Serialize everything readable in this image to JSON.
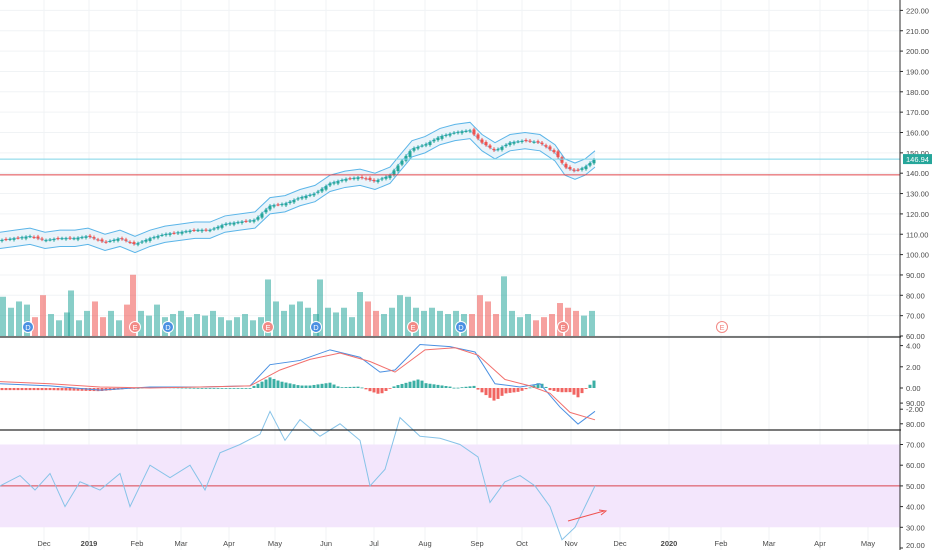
{
  "colors": {
    "up": "#26a69a",
    "down": "#ef5350",
    "band": "#5bb5e8",
    "band_fill": "#dcecf8",
    "support_line": "#e0464b",
    "price_line": "#7ed4e8",
    "price_tag": "#26a69a",
    "macd_line": "#4a90e2",
    "signal_line": "#f2706d",
    "rsi_line": "#87c3e8",
    "rsi_band": "#f3e6fc",
    "rsi_mid": "#d9434b",
    "grid": "#f0f3f5",
    "axis_text": "#4a4a4a"
  },
  "price_axis": {
    "ticks": [
      "60.00",
      "70.00",
      "80.00",
      "90.00",
      "100.00",
      "110.00",
      "120.00",
      "130.00",
      "140.00",
      "150.00",
      "160.00",
      "170.00",
      "180.00",
      "190.00",
      "200.00",
      "210.00",
      "220.00"
    ],
    "tick_values": [
      60,
      70,
      80,
      90,
      100,
      110,
      120,
      130,
      140,
      150,
      160,
      170,
      180,
      190,
      200,
      210,
      220
    ],
    "current_label": "146.94",
    "current_value": 146.94,
    "support_level": 139.2
  },
  "macd_axis": {
    "ticks": [
      "4.00",
      "2.00",
      "0.00",
      "-2.00"
    ],
    "tick_values": [
      4,
      2,
      0,
      -2
    ]
  },
  "rsi_axis": {
    "ticks": [
      "90.00",
      "80.00",
      "70.00",
      "60.00",
      "50.00",
      "40.00",
      "30.00",
      "20.00"
    ],
    "tick_values": [
      90,
      80,
      70,
      60,
      50,
      40,
      30,
      20
    ],
    "band": [
      30,
      70
    ],
    "midline": 50
  },
  "time_axis": [
    "Dec",
    "2019",
    "Feb",
    "Mar",
    "Apr",
    "May",
    "Jun",
    "Jul",
    "Aug",
    "Sep",
    "Oct",
    "Nov",
    "Dec",
    "2020",
    "Feb",
    "Mar",
    "Apr",
    "May"
  ],
  "chart_data": {
    "type": "candlestick",
    "series": [
      {
        "name": "price",
        "points": [
          {
            "t": 0,
            "v": 107
          },
          {
            "t": 15,
            "v": 108
          },
          {
            "t": 30,
            "v": 109
          },
          {
            "t": 45,
            "v": 107
          },
          {
            "t": 60,
            "v": 108
          },
          {
            "t": 75,
            "v": 108
          },
          {
            "t": 88,
            "v": 109
          },
          {
            "t": 105,
            "v": 106
          },
          {
            "t": 120,
            "v": 108
          },
          {
            "t": 135,
            "v": 105
          },
          {
            "t": 150,
            "v": 108
          },
          {
            "t": 165,
            "v": 110
          },
          {
            "t": 180,
            "v": 111
          },
          {
            "t": 195,
            "v": 112
          },
          {
            "t": 210,
            "v": 112
          },
          {
            "t": 225,
            "v": 115
          },
          {
            "t": 240,
            "v": 116
          },
          {
            "t": 255,
            "v": 117
          },
          {
            "t": 270,
            "v": 124
          },
          {
            "t": 285,
            "v": 125
          },
          {
            "t": 300,
            "v": 128
          },
          {
            "t": 315,
            "v": 130
          },
          {
            "t": 330,
            "v": 135
          },
          {
            "t": 345,
            "v": 137
          },
          {
            "t": 360,
            "v": 138
          },
          {
            "t": 375,
            "v": 136
          },
          {
            "t": 390,
            "v": 139
          },
          {
            "t": 400,
            "v": 145
          },
          {
            "t": 412,
            "v": 152
          },
          {
            "t": 425,
            "v": 154
          },
          {
            "t": 440,
            "v": 158
          },
          {
            "t": 455,
            "v": 160
          },
          {
            "t": 470,
            "v": 161
          },
          {
            "t": 482,
            "v": 155
          },
          {
            "t": 495,
            "v": 151
          },
          {
            "t": 510,
            "v": 155
          },
          {
            "t": 525,
            "v": 156
          },
          {
            "t": 540,
            "v": 155
          },
          {
            "t": 555,
            "v": 150
          },
          {
            "t": 565,
            "v": 143
          },
          {
            "t": 575,
            "v": 141
          },
          {
            "t": 585,
            "v": 143
          },
          {
            "t": 595,
            "v": 147
          }
        ]
      },
      {
        "name": "volume_millions",
        "points": [
          {
            "t": 3,
            "v": 85
          },
          {
            "t": 11,
            "v": 78
          },
          {
            "t": 19,
            "v": 82
          },
          {
            "t": 27,
            "v": 80
          },
          {
            "t": 35,
            "v": 72
          },
          {
            "t": 43,
            "v": 86
          },
          {
            "t": 51,
            "v": 74
          },
          {
            "t": 59,
            "v": 70
          },
          {
            "t": 67,
            "v": 75
          },
          {
            "t": 71,
            "v": 89
          },
          {
            "t": 79,
            "v": 70
          },
          {
            "t": 87,
            "v": 76
          },
          {
            "t": 95,
            "v": 82
          },
          {
            "t": 103,
            "v": 72
          },
          {
            "t": 111,
            "v": 76
          },
          {
            "t": 119,
            "v": 70
          },
          {
            "t": 127,
            "v": 80
          },
          {
            "t": 133,
            "v": 99
          },
          {
            "t": 141,
            "v": 76
          },
          {
            "t": 149,
            "v": 73
          },
          {
            "t": 157,
            "v": 80
          },
          {
            "t": 165,
            "v": 72
          },
          {
            "t": 173,
            "v": 74
          },
          {
            "t": 181,
            "v": 76
          },
          {
            "t": 189,
            "v": 72
          },
          {
            "t": 197,
            "v": 74
          },
          {
            "t": 205,
            "v": 73
          },
          {
            "t": 213,
            "v": 76
          },
          {
            "t": 221,
            "v": 72
          },
          {
            "t": 229,
            "v": 70
          },
          {
            "t": 237,
            "v": 72
          },
          {
            "t": 245,
            "v": 74
          },
          {
            "t": 253,
            "v": 70
          },
          {
            "t": 261,
            "v": 72
          },
          {
            "t": 268,
            "v": 96
          },
          {
            "t": 276,
            "v": 82
          },
          {
            "t": 284,
            "v": 76
          },
          {
            "t": 292,
            "v": 80
          },
          {
            "t": 300,
            "v": 82
          },
          {
            "t": 308,
            "v": 78
          },
          {
            "t": 316,
            "v": 74
          },
          {
            "t": 320,
            "v": 96
          },
          {
            "t": 328,
            "v": 78
          },
          {
            "t": 336,
            "v": 75
          },
          {
            "t": 344,
            "v": 78
          },
          {
            "t": 352,
            "v": 72
          },
          {
            "t": 360,
            "v": 88
          },
          {
            "t": 368,
            "v": 82
          },
          {
            "t": 376,
            "v": 76
          },
          {
            "t": 384,
            "v": 74
          },
          {
            "t": 392,
            "v": 78
          },
          {
            "t": 400,
            "v": 86
          },
          {
            "t": 408,
            "v": 85
          },
          {
            "t": 416,
            "v": 78
          },
          {
            "t": 424,
            "v": 76
          },
          {
            "t": 432,
            "v": 78
          },
          {
            "t": 440,
            "v": 76
          },
          {
            "t": 448,
            "v": 74
          },
          {
            "t": 456,
            "v": 76
          },
          {
            "t": 464,
            "v": 74
          },
          {
            "t": 472,
            "v": 74
          },
          {
            "t": 480,
            "v": 86
          },
          {
            "t": 488,
            "v": 82
          },
          {
            "t": 496,
            "v": 74
          },
          {
            "t": 504,
            "v": 98
          },
          {
            "t": 512,
            "v": 76
          },
          {
            "t": 520,
            "v": 72
          },
          {
            "t": 528,
            "v": 74
          },
          {
            "t": 536,
            "v": 70
          },
          {
            "t": 544,
            "v": 72
          },
          {
            "t": 552,
            "v": 74
          },
          {
            "t": 560,
            "v": 81
          },
          {
            "t": 568,
            "v": 78
          },
          {
            "t": 576,
            "v": 76
          },
          {
            "t": 584,
            "v": 73
          },
          {
            "t": 592,
            "v": 76
          }
        ]
      },
      {
        "name": "macd",
        "points": [
          {
            "t": 0,
            "v": 0.4
          },
          {
            "t": 50,
            "v": 0.2
          },
          {
            "t": 100,
            "v": -0.2
          },
          {
            "t": 150,
            "v": 0.1
          },
          {
            "t": 200,
            "v": 0.1
          },
          {
            "t": 250,
            "v": 0.2
          },
          {
            "t": 270,
            "v": 2.2
          },
          {
            "t": 300,
            "v": 2.6
          },
          {
            "t": 330,
            "v": 3.6
          },
          {
            "t": 360,
            "v": 2.9
          },
          {
            "t": 380,
            "v": 1.5
          },
          {
            "t": 395,
            "v": 1.7
          },
          {
            "t": 420,
            "v": 4.1
          },
          {
            "t": 450,
            "v": 3.9
          },
          {
            "t": 475,
            "v": 3.4
          },
          {
            "t": 495,
            "v": 0.4
          },
          {
            "t": 520,
            "v": 0.1
          },
          {
            "t": 540,
            "v": 0.4
          },
          {
            "t": 560,
            "v": -1.8
          },
          {
            "t": 578,
            "v": -3.4
          },
          {
            "t": 595,
            "v": -2.2
          }
        ]
      },
      {
        "name": "signal",
        "points": [
          {
            "t": 0,
            "v": 0.6
          },
          {
            "t": 50,
            "v": 0.4
          },
          {
            "t": 100,
            "v": 0.1
          },
          {
            "t": 150,
            "v": 0.0
          },
          {
            "t": 200,
            "v": 0.1
          },
          {
            "t": 250,
            "v": 0.2
          },
          {
            "t": 280,
            "v": 1.7
          },
          {
            "t": 310,
            "v": 2.7
          },
          {
            "t": 340,
            "v": 3.3
          },
          {
            "t": 370,
            "v": 2.5
          },
          {
            "t": 395,
            "v": 1.5
          },
          {
            "t": 425,
            "v": 3.6
          },
          {
            "t": 455,
            "v": 3.8
          },
          {
            "t": 478,
            "v": 3.1
          },
          {
            "t": 505,
            "v": 0.8
          },
          {
            "t": 530,
            "v": 0.2
          },
          {
            "t": 550,
            "v": -0.5
          },
          {
            "t": 570,
            "v": -2.3
          },
          {
            "t": 595,
            "v": -3.0
          }
        ]
      },
      {
        "name": "rsi",
        "points": [
          {
            "t": 0,
            "v": 50
          },
          {
            "t": 20,
            "v": 55
          },
          {
            "t": 35,
            "v": 48
          },
          {
            "t": 50,
            "v": 56
          },
          {
            "t": 65,
            "v": 40
          },
          {
            "t": 80,
            "v": 52
          },
          {
            "t": 100,
            "v": 48
          },
          {
            "t": 120,
            "v": 56
          },
          {
            "t": 130,
            "v": 40
          },
          {
            "t": 150,
            "v": 60
          },
          {
            "t": 170,
            "v": 54
          },
          {
            "t": 190,
            "v": 60
          },
          {
            "t": 205,
            "v": 48
          },
          {
            "t": 220,
            "v": 66
          },
          {
            "t": 240,
            "v": 70
          },
          {
            "t": 260,
            "v": 75
          },
          {
            "t": 270,
            "v": 86
          },
          {
            "t": 285,
            "v": 72
          },
          {
            "t": 300,
            "v": 82
          },
          {
            "t": 320,
            "v": 74
          },
          {
            "t": 340,
            "v": 80
          },
          {
            "t": 360,
            "v": 72
          },
          {
            "t": 370,
            "v": 50
          },
          {
            "t": 385,
            "v": 58
          },
          {
            "t": 400,
            "v": 83
          },
          {
            "t": 420,
            "v": 74
          },
          {
            "t": 440,
            "v": 73
          },
          {
            "t": 460,
            "v": 70
          },
          {
            "t": 478,
            "v": 64
          },
          {
            "t": 490,
            "v": 42
          },
          {
            "t": 505,
            "v": 52
          },
          {
            "t": 520,
            "v": 55
          },
          {
            "t": 535,
            "v": 50
          },
          {
            "t": 550,
            "v": 40
          },
          {
            "t": 562,
            "v": 24
          },
          {
            "t": 575,
            "v": 30
          },
          {
            "t": 590,
            "v": 45
          },
          {
            "t": 595,
            "v": 50
          }
        ]
      }
    ],
    "events": [
      {
        "t": 28,
        "label": "D"
      },
      {
        "t": 135,
        "label": "E"
      },
      {
        "t": 168,
        "label": "D"
      },
      {
        "t": 268,
        "label": "E"
      },
      {
        "t": 316,
        "label": "D"
      },
      {
        "t": 413,
        "label": "E"
      },
      {
        "t": 461,
        "label": "D"
      },
      {
        "t": 563,
        "label": "E"
      },
      {
        "t": 722,
        "label": "E"
      }
    ],
    "xlabel": "",
    "ylabel": "",
    "grid": true
  }
}
